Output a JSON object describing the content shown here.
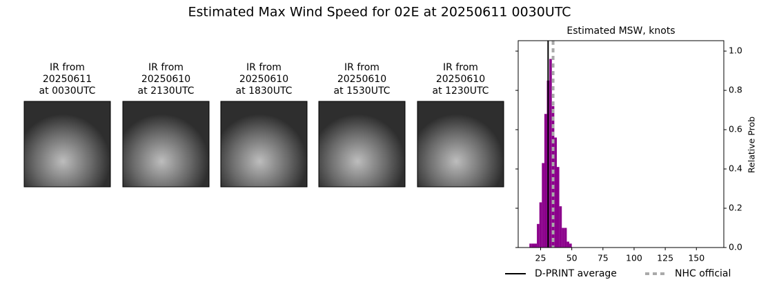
{
  "title": "Estimated Max Wind Speed for 02E at 20250611 0030UTC",
  "panels": [
    {
      "lines": [
        "IR from",
        "20250611",
        "at 0030UTC"
      ]
    },
    {
      "lines": [
        "IR from",
        "20250610",
        "at 2130UTC"
      ]
    },
    {
      "lines": [
        "IR from",
        "20250610",
        "at 1830UTC"
      ]
    },
    {
      "lines": [
        "IR from",
        "20250610",
        "at 1530UTC"
      ]
    },
    {
      "lines": [
        "IR from",
        "20250610",
        "at 1230UTC"
      ]
    }
  ],
  "chart_data": {
    "type": "histogram",
    "title": "Estimated MSW, knots",
    "y_label": "Relative Prob",
    "bins": [
      16,
      18,
      20,
      22,
      24,
      26,
      28,
      30,
      32,
      34,
      36,
      38,
      40,
      42,
      44,
      46,
      48,
      50
    ],
    "values": [
      0.02,
      0.02,
      0.02,
      0.12,
      0.23,
      0.43,
      0.68,
      0.85,
      0.96,
      0.72,
      0.56,
      0.41,
      0.21,
      0.1,
      0.1,
      0.03,
      0.02
    ],
    "color": "#8b008b",
    "xlim": [
      7,
      172
    ],
    "xticks": [
      25,
      50,
      75,
      100,
      125,
      150
    ],
    "ylim": [
      0,
      1.053
    ],
    "yticks": [
      {
        "value": 0,
        "label": "0.0"
      },
      0.2,
      0.4,
      0.6,
      0.8,
      {
        "value": 1,
        "label": "1.0"
      }
    ],
    "reference_lines": [
      {
        "name": "D-PRINT average",
        "x": 31,
        "color": "#000000",
        "dashed": false
      },
      {
        "name": "NHC official",
        "x": 35,
        "color": "#aaaaaa",
        "dashed": true
      }
    ]
  }
}
